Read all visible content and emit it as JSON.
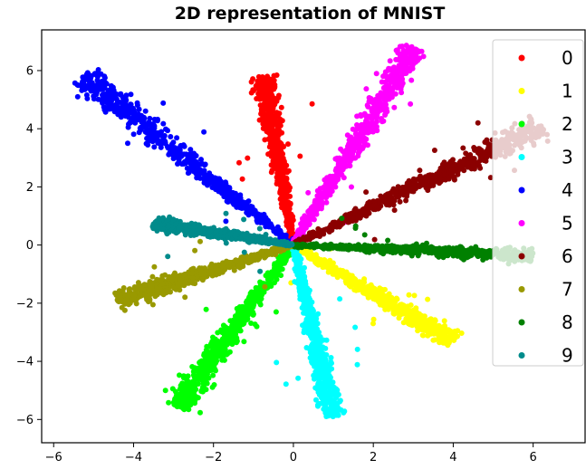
{
  "chart_data": {
    "type": "scatter",
    "title": "2D representation of MNIST",
    "xlabel": "",
    "ylabel": "",
    "xlim": [
      -6.3,
      7.3
    ],
    "ylim": [
      -6.8,
      7.4
    ],
    "xticks": [
      -6,
      -4,
      -2,
      0,
      2,
      4,
      6
    ],
    "xtick_labels": [
      "−6",
      "−4",
      "−2",
      "0",
      "2",
      "4",
      "6"
    ],
    "yticks": [
      -6,
      -4,
      -2,
      0,
      2,
      4,
      6
    ],
    "ytick_labels": [
      "−6",
      "−4",
      "−2",
      "0",
      "2",
      "4",
      "6"
    ],
    "grid": false,
    "legend_position": "right",
    "series": [
      {
        "name": "0",
        "color": "#ff0000",
        "end": [
          -0.75,
          5.8
        ],
        "width": 0.22
      },
      {
        "name": "1",
        "color": "#ffff00",
        "end": [
          4.0,
          -3.3
        ],
        "width": 0.25
      },
      {
        "name": "2",
        "color": "#00ff00",
        "end": [
          -2.9,
          -5.6
        ],
        "width": 0.3
      },
      {
        "name": "3",
        "color": "#00ffff",
        "end": [
          1.0,
          -5.9
        ],
        "width": 0.22
      },
      {
        "name": "4",
        "color": "#0000ff",
        "end": [
          -5.3,
          5.8
        ],
        "width": 0.32
      },
      {
        "name": "5",
        "color": "#ff00ff",
        "end": [
          3.0,
          6.8
        ],
        "width": 0.28
      },
      {
        "name": "6",
        "color": "#8b0000",
        "end": [
          6.2,
          4.1
        ],
        "width": 0.3
      },
      {
        "name": "7",
        "color": "#999900",
        "end": [
          -4.4,
          -1.9
        ],
        "width": 0.24
      },
      {
        "name": "8",
        "color": "#008000",
        "end": [
          6.0,
          -0.35
        ],
        "width": 0.18
      },
      {
        "name": "9",
        "color": "#008b8b",
        "end": [
          -3.5,
          0.75
        ],
        "width": 0.18
      }
    ]
  }
}
